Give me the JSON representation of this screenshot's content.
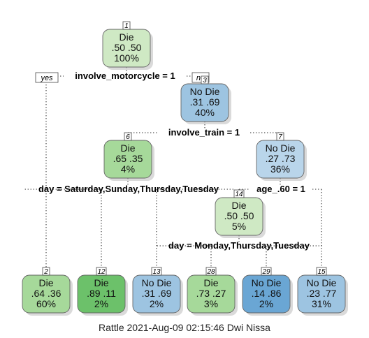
{
  "branch_labels": {
    "yes": "yes",
    "no": "no"
  },
  "colors": {
    "die_light": "#cfe9c4",
    "die_mid": "#a6d99a",
    "die_dark": "#6cc16a",
    "nodie_light": "#b9d5ea",
    "nodie_mid": "#9dc4e1",
    "nodie_dark": "#6aa6d4",
    "edge": "#555555"
  },
  "nodes": [
    {
      "id": "1",
      "label": "Die",
      "probs": ".50  .50",
      "pct": "100%",
      "color": "die_light"
    },
    {
      "id": "3",
      "label": "No Die",
      "probs": ".31  .69",
      "pct": "40%",
      "color": "nodie_mid"
    },
    {
      "id": "6",
      "label": "Die",
      "probs": ".65  .35",
      "pct": "4%",
      "color": "die_mid"
    },
    {
      "id": "7",
      "label": "No Die",
      "probs": ".27  .73",
      "pct": "36%",
      "color": "nodie_light"
    },
    {
      "id": "14",
      "label": "Die",
      "probs": ".50  .50",
      "pct": "5%",
      "color": "die_light"
    },
    {
      "id": "2",
      "label": "Die",
      "probs": ".64  .36",
      "pct": "60%",
      "color": "die_mid"
    },
    {
      "id": "12",
      "label": "Die",
      "probs": ".89  .11",
      "pct": "2%",
      "color": "die_dark"
    },
    {
      "id": "13",
      "label": "No Die",
      "probs": ".31  .69",
      "pct": "2%",
      "color": "nodie_mid"
    },
    {
      "id": "28",
      "label": "Die",
      "probs": ".73  .27",
      "pct": "3%",
      "color": "die_mid"
    },
    {
      "id": "29",
      "label": "No Die",
      "probs": ".14  .86",
      "pct": "2%",
      "color": "nodie_dark"
    },
    {
      "id": "15",
      "label": "No Die",
      "probs": ".23  .77",
      "pct": "31%",
      "color": "nodie_mid"
    }
  ],
  "splits": [
    {
      "id": "s1",
      "text": "involve_motorcycle = 1"
    },
    {
      "id": "s3",
      "text": "involve_train = 1"
    },
    {
      "id": "s6",
      "text": "day = Saturday,Sunday,Thursday,Tuesday"
    },
    {
      "id": "s7",
      "text": "age_.60 = 1"
    },
    {
      "id": "s14",
      "text": "day = Monday,Thursday,Tuesday"
    }
  ],
  "caption": "Rattle 2021-Aug-09 02:15:46 Dwi Nissa"
}
